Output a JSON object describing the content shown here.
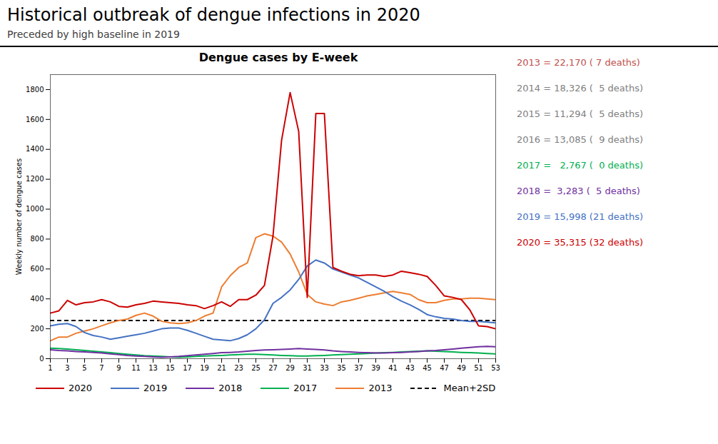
{
  "chart_data": {
    "type": "line",
    "title": "Historical outbreak of dengue infections in 2020",
    "subtitle": "Preceded by high baseline in 2019",
    "chart_title": "Dengue cases by E-week",
    "ylabel": "Weekly number of dengue cases",
    "x": [
      1,
      2,
      3,
      4,
      5,
      6,
      7,
      8,
      9,
      10,
      11,
      12,
      13,
      14,
      15,
      16,
      17,
      18,
      19,
      20,
      21,
      22,
      23,
      24,
      25,
      26,
      27,
      28,
      29,
      30,
      31,
      32,
      33,
      34,
      35,
      36,
      37,
      38,
      39,
      40,
      41,
      42,
      43,
      44,
      45,
      46,
      47,
      48,
      49,
      50,
      51,
      52,
      53
    ],
    "series": [
      {
        "name": "2020",
        "color": "#cc0000",
        "values": [
          305,
          320,
          390,
          360,
          375,
          380,
          395,
          380,
          350,
          345,
          360,
          370,
          385,
          380,
          375,
          370,
          360,
          355,
          335,
          355,
          380,
          350,
          395,
          395,
          425,
          490,
          820,
          1460,
          1780,
          1520,
          410,
          1640,
          1640,
          610,
          585,
          565,
          555,
          560,
          560,
          550,
          560,
          585,
          575,
          565,
          550,
          490,
          420,
          410,
          395,
          325,
          220,
          215,
          200
        ]
      },
      {
        "name": "2019",
        "color": "#4472c4",
        "values": [
          220,
          230,
          235,
          215,
          175,
          155,
          145,
          130,
          140,
          150,
          160,
          170,
          185,
          200,
          205,
          205,
          190,
          170,
          150,
          130,
          125,
          120,
          135,
          160,
          200,
          260,
          370,
          410,
          460,
          530,
          620,
          660,
          640,
          600,
          580,
          560,
          540,
          510,
          480,
          450,
          415,
          385,
          360,
          330,
          295,
          280,
          270,
          265,
          255,
          250,
          250,
          245,
          240
        ]
      },
      {
        "name": "2018",
        "color": "#7030a0",
        "values": [
          60,
          55,
          52,
          48,
          45,
          42,
          38,
          32,
          28,
          22,
          18,
          15,
          12,
          10,
          12,
          15,
          20,
          25,
          30,
          35,
          40,
          42,
          45,
          50,
          55,
          58,
          60,
          62,
          65,
          68,
          65,
          62,
          58,
          52,
          48,
          45,
          42,
          40,
          38,
          38,
          40,
          42,
          45,
          48,
          52,
          55,
          60,
          65,
          70,
          75,
          80,
          82,
          80
        ]
      },
      {
        "name": "2017",
        "color": "#00b050",
        "values": [
          70,
          68,
          65,
          60,
          55,
          50,
          45,
          40,
          35,
          30,
          25,
          20,
          18,
          15,
          12,
          10,
          12,
          15,
          18,
          20,
          22,
          25,
          28,
          30,
          30,
          28,
          25,
          22,
          20,
          18,
          18,
          20,
          22,
          25,
          28,
          30,
          32,
          35,
          38,
          40,
          42,
          45,
          48,
          50,
          52,
          50,
          48,
          45,
          42,
          40,
          38,
          35,
          32
        ]
      },
      {
        "name": "2013",
        "color": "#ed7d31",
        "values": [
          120,
          145,
          145,
          170,
          185,
          200,
          220,
          240,
          255,
          265,
          290,
          305,
          285,
          250,
          240,
          235,
          240,
          255,
          285,
          305,
          480,
          555,
          610,
          640,
          810,
          835,
          820,
          780,
          700,
          580,
          430,
          380,
          365,
          355,
          380,
          390,
          405,
          420,
          430,
          440,
          450,
          440,
          430,
          395,
          375,
          375,
          390,
          400,
          400,
          405,
          405,
          400,
          395
        ]
      }
    ],
    "reference_line": {
      "name": "Mean+2SD",
      "value": 255,
      "color": "#000000",
      "line_style": "dashed"
    },
    "annotations": [
      {
        "text": "2013 = 22,170 ( 7 deaths)",
        "color": "#c0504d"
      },
      {
        "text": "2014 = 18,326 (  5 deaths)",
        "color": "#808080"
      },
      {
        "text": "2015 = 11,294 (  5 deaths)",
        "color": "#808080"
      },
      {
        "text": "2016 = 13,085 (  9 deaths)",
        "color": "#808080"
      },
      {
        "text": "2017 =   2,767 (  0 deaths)",
        "color": "#00b050"
      },
      {
        "text": "2018 =  3,283 (  5 deaths)",
        "color": "#7030a0"
      },
      {
        "text": "2019 = 15,998 (21 deaths)",
        "color": "#4472c4"
      },
      {
        "text": "2020 = 35,315 (32 deaths)",
        "color": "#cc0000"
      }
    ],
    "xlim": [
      1,
      53
    ],
    "xticks": [
      1,
      3,
      5,
      7,
      9,
      11,
      13,
      15,
      17,
      19,
      21,
      23,
      25,
      27,
      29,
      31,
      33,
      35,
      37,
      39,
      41,
      43,
      45,
      47,
      49,
      51,
      53
    ],
    "ylim": [
      0,
      1900
    ],
    "yticks": [
      0,
      200,
      400,
      600,
      800,
      1000,
      1200,
      1400,
      1600,
      1800
    ],
    "grid": false,
    "legend": "bottom"
  }
}
